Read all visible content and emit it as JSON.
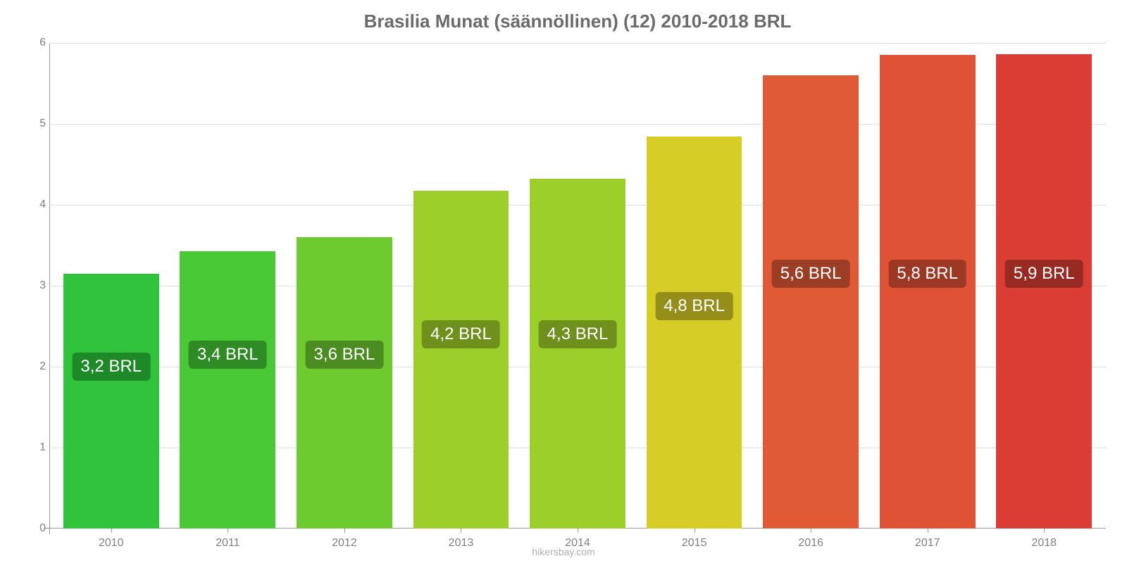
{
  "chart": {
    "type": "bar",
    "title": "Brasilia Munat (säännöllinen) (12) 2010-2018 BRL",
    "title_fontsize": 26,
    "title_color": "#6b6b6b",
    "background_color": "#ffffff",
    "grid_color": "#dcdcdc",
    "axis_color": "#9a9a9a",
    "tick_color": "#808080",
    "tick_fontsize": 16,
    "bar_label_fontsize": 24,
    "bar_label_text_color": "#ffffff",
    "bar_width_ratio": 0.82,
    "ylim": [
      0,
      6
    ],
    "yticks": [
      0,
      1,
      2,
      3,
      4,
      5,
      6
    ],
    "categories": [
      "2010",
      "2011",
      "2012",
      "2013",
      "2014",
      "2015",
      "2016",
      "2017",
      "2018"
    ],
    "values": [
      3.15,
      3.43,
      3.6,
      4.17,
      4.32,
      4.84,
      5.6,
      5.85,
      5.86
    ],
    "value_labels": [
      "3,2 BRL",
      "3,4 BRL",
      "3,6 BRL",
      "4,2 BRL",
      "4,3 BRL",
      "4,8 BRL",
      "5,6 BRL",
      "5,8 BRL",
      "5,9 BRL"
    ],
    "bar_colors": [
      "#30c33b",
      "#48c935",
      "#6ecb2f",
      "#9ccf2a",
      "#9ccf2a",
      "#d6cd27",
      "#e05a36",
      "#e05235",
      "#db3d35"
    ],
    "label_bg_colors": [
      "#1e8a27",
      "#2f8b23",
      "#4b8d20",
      "#6f901d",
      "#6f901d",
      "#968e1a",
      "#9c3e25",
      "#9c3824",
      "#982a24"
    ],
    "label_y_pos": [
      2.0,
      2.15,
      2.15,
      2.4,
      2.4,
      2.75,
      3.15,
      3.15,
      3.15
    ],
    "attribution": "hikersbay.com"
  }
}
